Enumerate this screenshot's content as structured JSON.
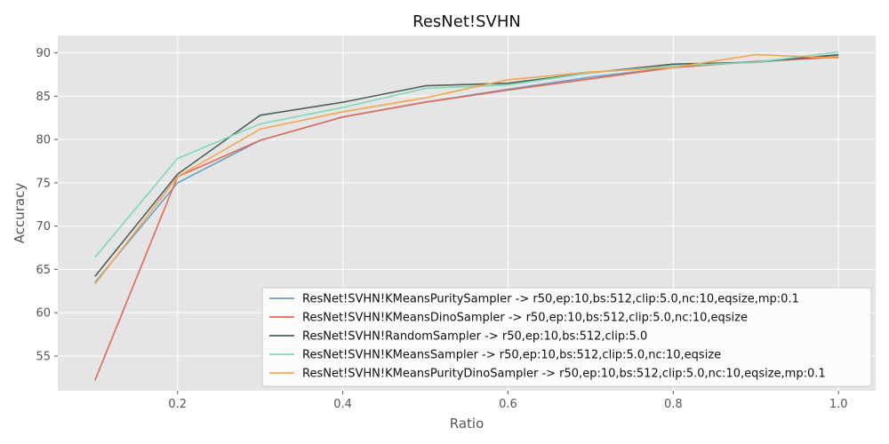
{
  "chart_data": {
    "type": "line",
    "title": "ResNet!SVHN",
    "xlabel": "Ratio",
    "ylabel": "Accuracy",
    "xlim": [
      0.055,
      1.045
    ],
    "ylim": [
      51.0,
      92.0
    ],
    "xticks": [
      0.2,
      0.4,
      0.6,
      0.8,
      1.0
    ],
    "xtick_labels": [
      "0.2",
      "0.4",
      "0.6",
      "0.8",
      "1.0"
    ],
    "yticks": [
      55,
      60,
      65,
      70,
      75,
      80,
      85,
      90
    ],
    "ytick_labels": [
      "55",
      "60",
      "65",
      "70",
      "75",
      "80",
      "85",
      "90"
    ],
    "grid": true,
    "legend_position": "lower-right",
    "x": [
      0.1,
      0.2,
      0.3,
      0.4,
      0.5,
      0.6,
      0.7,
      0.8,
      0.9,
      1.0
    ],
    "series": [
      {
        "name": "ResNet!SVHN!KMeansPuritySampler ->  r50,ep:10,bs:512,clip:5.0,nc:10,eqsize,mp:0.1",
        "color": "#6a9ec5",
        "values": [
          63.5,
          75.0,
          79.9,
          82.6,
          84.3,
          85.8,
          87.2,
          88.3,
          89.0,
          89.7
        ]
      },
      {
        "name": "ResNet!SVHN!KMeansDinoSampler ->  r50,ep:10,bs:512,clip:5.0,nc:10,eqsize",
        "color": "#e06a57",
        "values": [
          52.2,
          75.7,
          79.9,
          82.6,
          84.3,
          85.7,
          87.0,
          88.3,
          89.0,
          89.5
        ]
      },
      {
        "name": "ResNet!SVHN!RandomSampler ->  r50,ep:10,bs:512,clip:5.0",
        "color": "#4f5f57",
        "values": [
          64.2,
          76.0,
          82.8,
          84.3,
          86.2,
          86.5,
          87.7,
          88.7,
          88.9,
          89.8
        ]
      },
      {
        "name": "ResNet!SVHN!KMeansSampler ->  r50,ep:10,bs:512,clip:5.0,nc:10,eqsize",
        "color": "#7fd8b5",
        "values": [
          66.4,
          77.8,
          81.8,
          83.7,
          85.9,
          86.3,
          87.7,
          88.5,
          88.9,
          90.1
        ]
      },
      {
        "name": "ResNet!SVHN!KMeansPurityDinoSampler ->  r50,ep:10,bs:512,clip:5.0,nc:10,eqsize,mp:0.1",
        "color": "#f0a654",
        "values": [
          63.3,
          75.7,
          81.2,
          83.2,
          84.8,
          86.9,
          87.8,
          88.3,
          89.8,
          89.4
        ]
      }
    ]
  }
}
